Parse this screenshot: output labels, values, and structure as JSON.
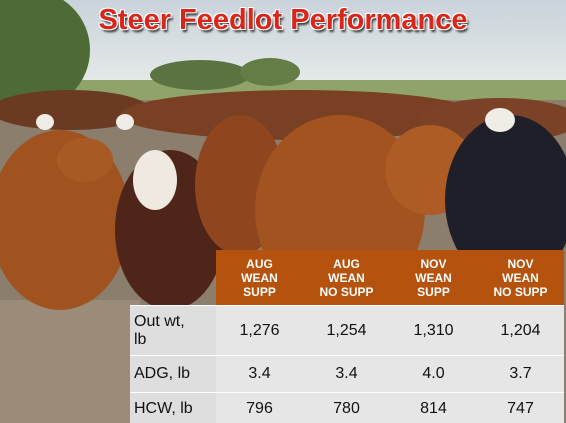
{
  "header": {
    "title": "Steer Feedlot Performance"
  },
  "table": {
    "columns": [
      [
        "AUG",
        "WEAN",
        "SUPP"
      ],
      [
        "AUG",
        "WEAN",
        "NO SUPP"
      ],
      [
        "NOV",
        "WEAN",
        "SUPP"
      ],
      [
        "NOV",
        "WEAN",
        "NO SUPP"
      ]
    ],
    "rows": [
      [
        "Out wt, lb",
        "1,276",
        "1,254",
        "1,310",
        "1,204"
      ],
      [
        "ADG, lb",
        "3.4",
        "3.4",
        "4.0",
        "3.7"
      ],
      [
        "HCW, lb",
        "796",
        "780",
        "814",
        "747"
      ]
    ]
  }
}
